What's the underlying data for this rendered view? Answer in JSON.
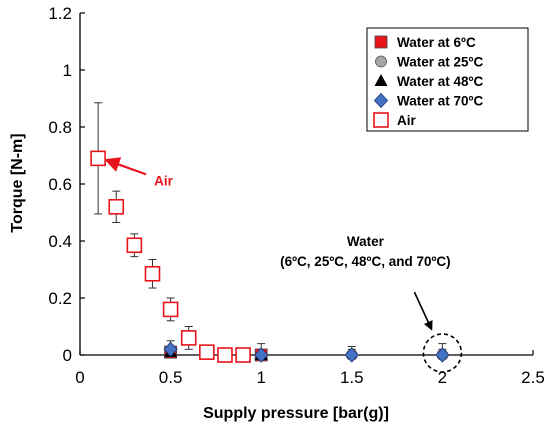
{
  "chart_data": {
    "type": "scatter",
    "xlabel": "Supply pressure [bar(g)]",
    "ylabel": "Torque [N-m]",
    "xlim": [
      0,
      2.5
    ],
    "ylim": [
      0,
      1.2
    ],
    "x_ticks": [
      "0",
      "0.5",
      "1",
      "1.5",
      "2",
      "2.5"
    ],
    "y_ticks": [
      "0",
      "0.2",
      "0.4",
      "0.6",
      "0.8",
      "1",
      "1.2"
    ],
    "grid": false,
    "legend_position": "top-right",
    "series": [
      {
        "name": "Water at 6ºC",
        "marker": "square",
        "color": "#e8141c",
        "points": [
          {
            "x": 0.5,
            "y": 0.01,
            "err": 0
          },
          {
            "x": 1.0,
            "y": 0.0,
            "err": 0
          }
        ]
      },
      {
        "name": "Water at 25ºC",
        "marker": "circle",
        "color": "#a6a6a6",
        "points": [
          {
            "x": 0.5,
            "y": 0.01,
            "err": 0
          },
          {
            "x": 1.0,
            "y": 0.0,
            "err": 0.02
          },
          {
            "x": 1.5,
            "y": 0.0,
            "err": 0.02
          },
          {
            "x": 2.0,
            "y": 0.0,
            "err": 0.02
          }
        ]
      },
      {
        "name": "Water at 48ºC",
        "marker": "triangle",
        "color": "#000000",
        "points": [
          {
            "x": 0.5,
            "y": 0.01,
            "err": 0
          },
          {
            "x": 1.0,
            "y": 0.0,
            "err": 0
          }
        ]
      },
      {
        "name": "Water at 70ºC",
        "marker": "diamond",
        "color": "#4472c4",
        "points": [
          {
            "x": 0.5,
            "y": 0.02,
            "err": 0.03
          },
          {
            "x": 1.0,
            "y": 0.0,
            "err": 0.04
          },
          {
            "x": 1.5,
            "y": 0.0,
            "err": 0.03
          },
          {
            "x": 2.0,
            "y": 0.0,
            "err": 0.04
          }
        ]
      },
      {
        "name": "Air",
        "marker": "open-square",
        "color": "#e8141c",
        "points": [
          {
            "x": 0.1,
            "y": 0.69,
            "err": 0.195
          },
          {
            "x": 0.2,
            "y": 0.52,
            "err": 0.055
          },
          {
            "x": 0.3,
            "y": 0.385,
            "err": 0.04
          },
          {
            "x": 0.4,
            "y": 0.285,
            "err": 0.05
          },
          {
            "x": 0.5,
            "y": 0.16,
            "err": 0.04
          },
          {
            "x": 0.6,
            "y": 0.06,
            "err": 0.04
          },
          {
            "x": 0.7,
            "y": 0.01,
            "err": 0
          },
          {
            "x": 0.8,
            "y": 0.0,
            "err": 0
          },
          {
            "x": 0.9,
            "y": 0.0,
            "err": 0
          }
        ]
      }
    ],
    "annotations": {
      "air_label": {
        "text": "Air",
        "color": "#e8141c",
        "target": {
          "x": 0.1,
          "y": 0.69
        }
      },
      "water_label": {
        "line1": "Water",
        "line2": "(6ºC, 25ºC, 48ºC, and 70ºC)",
        "color": "#000000",
        "target": {
          "x": 2.0,
          "y": 0.0
        }
      }
    }
  }
}
